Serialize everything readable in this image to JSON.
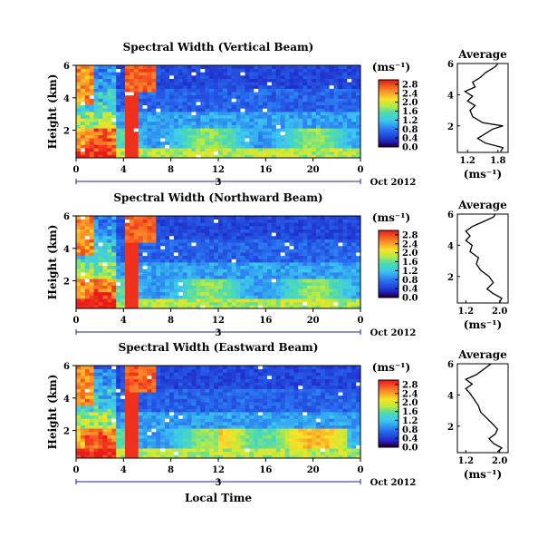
{
  "chart_data": [
    {
      "type": "heatmap",
      "title": "Spectral Width (Vertical Beam)",
      "ylabel": "Height (km)",
      "x_ticks": [
        "0",
        "4",
        "8",
        "12",
        "16",
        "20",
        "0"
      ],
      "y_ticks": [
        "2",
        "4",
        "6"
      ],
      "ylim": [
        0.3,
        6.0
      ],
      "xlim": [
        0,
        24
      ],
      "day_label": "3",
      "date_label": "Oct 2012",
      "colorbar": {
        "unit": "(ms⁻¹)",
        "ticks": [
          "0.0",
          "0.4",
          "0.8",
          "1.2",
          "1.6",
          "2.0",
          "2.4",
          "2.8"
        ],
        "range": [
          0.0,
          3.0
        ]
      },
      "avg": {
        "title": "Average",
        "xlabel": "(ms⁻¹)",
        "x_ticks": [
          "1.2",
          "1.8"
        ],
        "xlim": [
          1.0,
          2.0
        ],
        "y_ticks": [
          "2",
          "4",
          "6"
        ],
        "profile": [
          [
            1.85,
            0.35
          ],
          [
            1.9,
            0.6
          ],
          [
            1.55,
            0.9
          ],
          [
            1.4,
            1.2
          ],
          [
            1.55,
            1.5
          ],
          [
            1.7,
            1.8
          ],
          [
            1.9,
            2.0
          ],
          [
            1.5,
            2.2
          ],
          [
            1.3,
            2.6
          ],
          [
            1.25,
            3.0
          ],
          [
            1.35,
            3.3
          ],
          [
            1.2,
            3.6
          ],
          [
            1.3,
            3.9
          ],
          [
            1.15,
            4.2
          ],
          [
            1.35,
            4.5
          ],
          [
            1.3,
            4.8
          ],
          [
            1.45,
            5.1
          ],
          [
            1.55,
            5.4
          ],
          [
            1.75,
            5.8
          ],
          [
            1.8,
            6.0
          ]
        ]
      }
    },
    {
      "type": "heatmap",
      "title": "Spectral Width (Northward Beam)",
      "ylabel": "Height (km)",
      "x_ticks": [
        "0",
        "4",
        "8",
        "12",
        "16",
        "20",
        "0"
      ],
      "y_ticks": [
        "2",
        "4",
        "6"
      ],
      "ylim": [
        0.3,
        6.0
      ],
      "xlim": [
        0,
        24
      ],
      "day_label": "3",
      "date_label": "Oct 2012",
      "colorbar": {
        "unit": "(ms⁻¹)",
        "ticks": [
          "0.0",
          "0.4",
          "0.8",
          "1.2",
          "1.6",
          "2.0",
          "2.4",
          "2.8"
        ],
        "range": [
          0.0,
          3.0
        ]
      },
      "avg": {
        "title": "Average",
        "xlabel": "(ms⁻¹)",
        "x_ticks": [
          "1.2",
          "2.0"
        ],
        "xlim": [
          1.0,
          2.2
        ],
        "y_ticks": [
          "2",
          "4",
          "6"
        ],
        "profile": [
          [
            2.0,
            0.35
          ],
          [
            2.05,
            0.6
          ],
          [
            1.85,
            0.9
          ],
          [
            1.7,
            1.2
          ],
          [
            1.85,
            1.6
          ],
          [
            1.75,
            2.0
          ],
          [
            1.55,
            2.4
          ],
          [
            1.45,
            2.8
          ],
          [
            1.5,
            3.2
          ],
          [
            1.3,
            3.6
          ],
          [
            1.35,
            4.0
          ],
          [
            1.2,
            4.3
          ],
          [
            1.3,
            4.6
          ],
          [
            1.2,
            4.9
          ],
          [
            1.35,
            5.2
          ],
          [
            1.6,
            5.5
          ],
          [
            1.85,
            5.8
          ],
          [
            1.9,
            6.0
          ]
        ]
      }
    },
    {
      "type": "heatmap",
      "title": "Spectral Width (Eastward Beam)",
      "ylabel": "Height (km)",
      "xlabel": "Local Time",
      "x_ticks": [
        "0",
        "4",
        "8",
        "12",
        "16",
        "20",
        "0"
      ],
      "y_ticks": [
        "2",
        "4",
        "6"
      ],
      "ylim": [
        0.3,
        6.0
      ],
      "xlim": [
        0,
        24
      ],
      "day_label": "3",
      "date_label": "Oct 2012",
      "colorbar": {
        "unit": "(ms⁻¹)",
        "ticks": [
          "0.0",
          "0.4",
          "0.8",
          "1.2",
          "1.6",
          "2.0",
          "2.4",
          "2.8"
        ],
        "range": [
          0.0,
          3.0
        ]
      },
      "avg": {
        "title": "Average",
        "xlabel": "(ms⁻¹)",
        "x_ticks": [
          "1.2",
          "2.0"
        ],
        "xlim": [
          1.0,
          2.2
        ],
        "y_ticks": [
          "2",
          "4",
          "6"
        ],
        "profile": [
          [
            1.95,
            0.35
          ],
          [
            2.05,
            0.6
          ],
          [
            1.85,
            0.9
          ],
          [
            1.75,
            1.2
          ],
          [
            1.9,
            1.5
          ],
          [
            1.95,
            1.8
          ],
          [
            1.85,
            2.1
          ],
          [
            1.7,
            2.5
          ],
          [
            1.55,
            2.9
          ],
          [
            1.5,
            3.3
          ],
          [
            1.4,
            3.7
          ],
          [
            1.3,
            4.1
          ],
          [
            1.2,
            4.4
          ],
          [
            1.35,
            4.7
          ],
          [
            1.2,
            5.0
          ],
          [
            1.45,
            5.3
          ],
          [
            1.6,
            5.6
          ],
          [
            1.75,
            5.9
          ],
          [
            1.8,
            6.0
          ]
        ]
      }
    }
  ]
}
